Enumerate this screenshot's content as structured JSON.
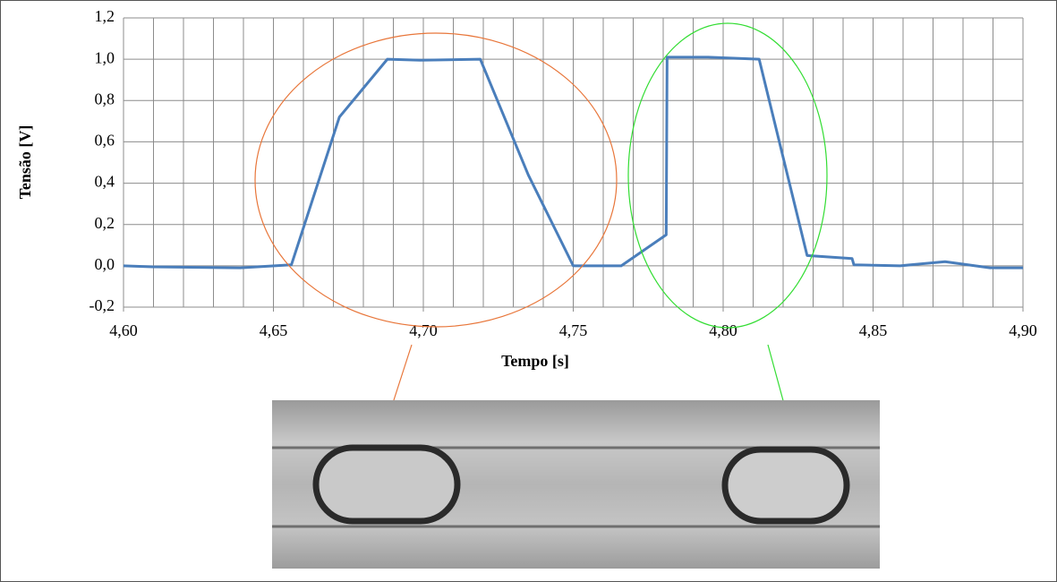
{
  "chart_data": {
    "type": "line",
    "x_label": "Tempo [s]",
    "y_label": "Tensão [V]",
    "xlim": [
      4.6,
      4.9
    ],
    "ylim": [
      -0.2,
      1.2
    ],
    "xticks": [
      {
        "value": 4.6,
        "label": "4,60"
      },
      {
        "value": 4.65,
        "label": "4,65"
      },
      {
        "value": 4.7,
        "label": "4,70"
      },
      {
        "value": 4.75,
        "label": "4,75"
      },
      {
        "value": 4.8,
        "label": "4,80"
      },
      {
        "value": 4.85,
        "label": "4,85"
      },
      {
        "value": 4.9,
        "label": "4,90"
      }
    ],
    "x_minor_ticks": [
      4.6,
      4.61,
      4.62,
      4.63,
      4.64,
      4.65,
      4.66,
      4.67,
      4.68,
      4.69,
      4.7,
      4.71,
      4.72,
      4.73,
      4.74,
      4.75,
      4.76,
      4.77,
      4.78,
      4.79,
      4.8,
      4.81,
      4.82,
      4.83,
      4.84,
      4.85,
      4.86,
      4.87,
      4.88,
      4.89,
      4.9
    ],
    "yticks": [
      {
        "value": -0.2,
        "label": "-0,2"
      },
      {
        "value": 0,
        "label": "0,0"
      },
      {
        "value": 0.2,
        "label": "0,2"
      },
      {
        "value": 0.4,
        "label": "0,4"
      },
      {
        "value": 0.6,
        "label": "0,6"
      },
      {
        "value": 0.8,
        "label": "0,8"
      },
      {
        "value": 1.0,
        "label": "1,0"
      },
      {
        "value": 1.2,
        "label": "1,2"
      }
    ],
    "grid": true,
    "series": [
      {
        "color": "#4a7ebb",
        "x": [
          4.6,
          4.6096,
          4.639,
          4.656,
          4.672,
          4.688,
          4.699,
          4.719,
          4.735,
          4.75,
          4.766,
          4.781,
          4.7813,
          4.795,
          4.812,
          4.828,
          4.843,
          4.8436,
          4.859,
          4.874,
          4.889,
          4.9
        ],
        "values": [
          0.0,
          -0.005,
          -0.01,
          0.005,
          0.72,
          1.0,
          0.995,
          1.0,
          0.44,
          0.0,
          0.0,
          0.15,
          1.01,
          1.01,
          1.0,
          0.05,
          0.035,
          0.005,
          0.0,
          0.02,
          -0.01,
          -0.01
        ]
      }
    ]
  }
}
